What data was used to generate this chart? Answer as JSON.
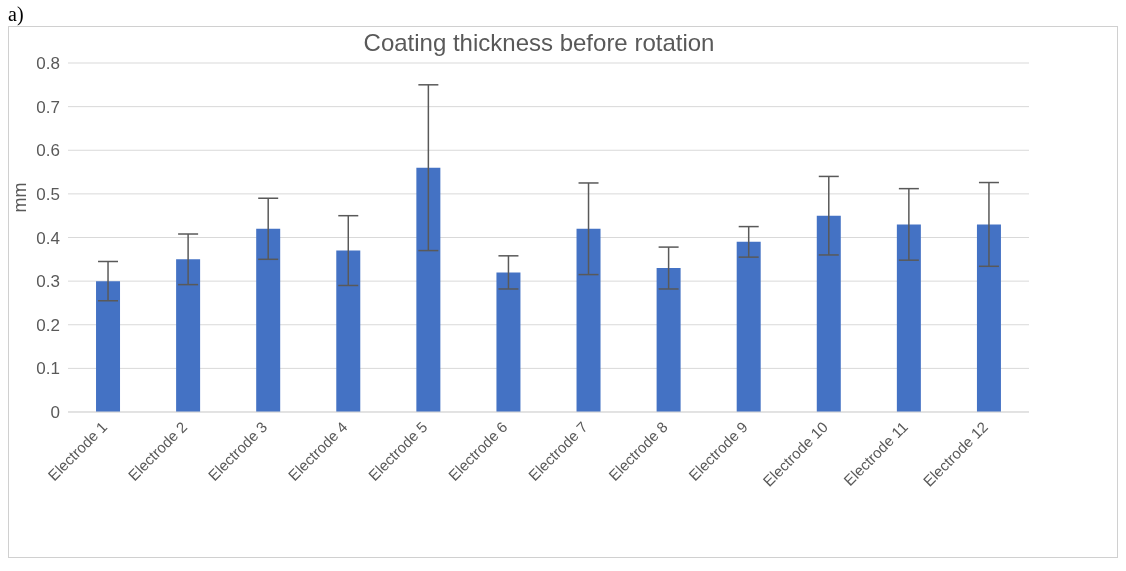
{
  "chart_data": {
    "type": "bar",
    "title": "Coating thickness before rotation",
    "ylabel": "mm",
    "annotations": [
      "a)"
    ],
    "categories": [
      "Electrode 1",
      "Electrode 2",
      "Electrode 3",
      "Electrode 4",
      "Electrode 5",
      "Electrode 6",
      "Electrode 7",
      "Electrode 8",
      "Electrode 9",
      "Electrode 10",
      "Electrode 11",
      "Electrode 12"
    ],
    "values": [
      0.3,
      0.35,
      0.42,
      0.37,
      0.56,
      0.32,
      0.42,
      0.33,
      0.39,
      0.45,
      0.43,
      0.43
    ],
    "errors": [
      0.045,
      0.058,
      0.07,
      0.08,
      0.19,
      0.038,
      0.105,
      0.048,
      0.035,
      0.09,
      0.082,
      0.096
    ],
    "color": "#4472c4",
    "ylim": [
      0,
      0.8
    ],
    "yticks": [
      0,
      0.1,
      0.2,
      0.3,
      0.4,
      0.5,
      0.6,
      0.7,
      0.8
    ],
    "grid": "y",
    "legend": false
  }
}
